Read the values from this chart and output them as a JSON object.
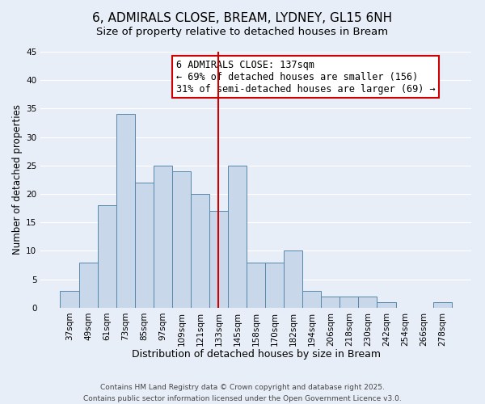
{
  "title": "6, ADMIRALS CLOSE, BREAM, LYDNEY, GL15 6NH",
  "subtitle": "Size of property relative to detached houses in Bream",
  "xlabel": "Distribution of detached houses by size in Bream",
  "ylabel": "Number of detached properties",
  "bar_labels": [
    "37sqm",
    "49sqm",
    "61sqm",
    "73sqm",
    "85sqm",
    "97sqm",
    "109sqm",
    "121sqm",
    "133sqm",
    "145sqm",
    "158sqm",
    "170sqm",
    "182sqm",
    "194sqm",
    "206sqm",
    "218sqm",
    "230sqm",
    "242sqm",
    "254sqm",
    "266sqm",
    "278sqm"
  ],
  "bar_values": [
    3,
    8,
    18,
    34,
    22,
    25,
    24,
    20,
    17,
    25,
    8,
    8,
    10,
    3,
    2,
    2,
    2,
    1,
    0,
    0,
    1
  ],
  "bar_color": "#c8d8ea",
  "bar_edgecolor": "#5588aa",
  "vline_x": 8.0,
  "vline_color": "#cc0000",
  "annotation_box_text": "6 ADMIRALS CLOSE: 137sqm\n← 69% of detached houses are smaller (156)\n31% of semi-detached houses are larger (69) →",
  "ylim": [
    0,
    45
  ],
  "yticks": [
    0,
    5,
    10,
    15,
    20,
    25,
    30,
    35,
    40,
    45
  ],
  "background_color": "#e8eef8",
  "grid_color": "#ffffff",
  "footnote": "Contains HM Land Registry data © Crown copyright and database right 2025.\nContains public sector information licensed under the Open Government Licence v3.0.",
  "title_fontsize": 11,
  "subtitle_fontsize": 9.5,
  "xlabel_fontsize": 9,
  "ylabel_fontsize": 8.5,
  "tick_fontsize": 7.5,
  "annot_fontsize": 8.5,
  "footnote_fontsize": 6.5
}
